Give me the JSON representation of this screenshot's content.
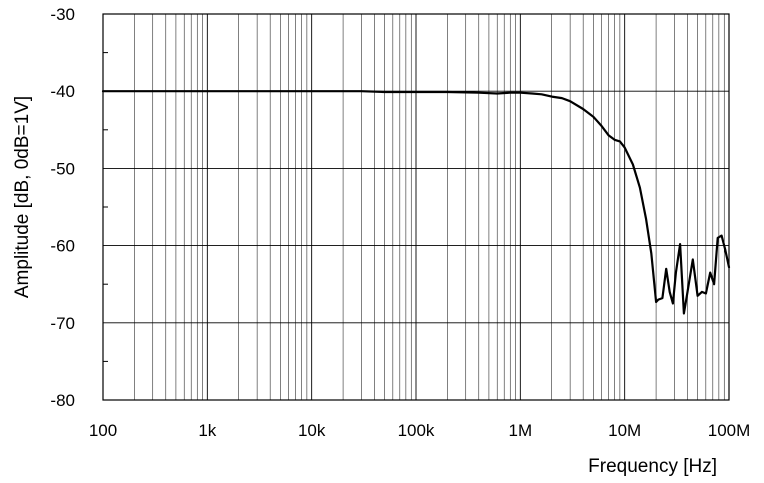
{
  "chart_data": {
    "type": "line",
    "title": "",
    "xlabel": "Frequency [Hz]",
    "ylabel": "Amplitude [dB, 0dB=1V]",
    "x_scale": "log",
    "xlim": [
      100,
      100000000
    ],
    "ylim": [
      -80,
      -30
    ],
    "x_ticks": [
      {
        "value": 100,
        "label": "100"
      },
      {
        "value": 1000,
        "label": "1k"
      },
      {
        "value": 10000,
        "label": "10k"
      },
      {
        "value": 100000,
        "label": "100k"
      },
      {
        "value": 1000000,
        "label": "1M"
      },
      {
        "value": 10000000,
        "label": "10M"
      },
      {
        "value": 100000000,
        "label": "100M"
      }
    ],
    "y_ticks": [
      {
        "value": -30,
        "label": "-30"
      },
      {
        "value": -40,
        "label": "-40"
      },
      {
        "value": -50,
        "label": "-50"
      },
      {
        "value": -60,
        "label": "-60"
      },
      {
        "value": -70,
        "label": "-70"
      },
      {
        "value": -80,
        "label": "-80"
      }
    ],
    "grid": true,
    "line_color": "#000000",
    "grid_color": "#000000",
    "series": [
      {
        "x": [
          100,
          1000,
          10000,
          30000,
          50000,
          100000,
          200000,
          400000,
          600000,
          800000,
          1000000,
          1300000,
          1600000,
          2000000,
          2500000,
          3000000,
          4000000,
          5000000,
          6000000,
          7000000,
          8000000,
          9000000,
          10000000,
          12000000,
          14000000,
          16000000,
          18000000,
          20000000,
          21000000,
          23000000,
          25000000,
          27000000,
          29000000,
          31000000,
          34000000,
          37000000,
          40000000,
          45000000,
          50000000,
          55000000,
          60000000,
          66000000,
          72000000,
          78000000,
          85000000,
          92000000,
          100000000
        ],
        "y": [
          -40,
          -40,
          -40,
          -40,
          -40.1,
          -40.1,
          -40.1,
          -40.2,
          -40.3,
          -40.2,
          -40.2,
          -40.3,
          -40.4,
          -40.7,
          -40.9,
          -41.3,
          -42.3,
          -43.3,
          -44.5,
          -45.7,
          -46.3,
          -46.5,
          -47.3,
          -49.5,
          -52.5,
          -56.5,
          -61,
          -67.3,
          -67,
          -66.8,
          -63,
          -66,
          -67.5,
          -63.5,
          -59.8,
          -68.8,
          -66,
          -61.8,
          -66.5,
          -66,
          -66.2,
          -63.5,
          -65,
          -59,
          -58.7,
          -60.5,
          -62.8
        ]
      }
    ]
  }
}
